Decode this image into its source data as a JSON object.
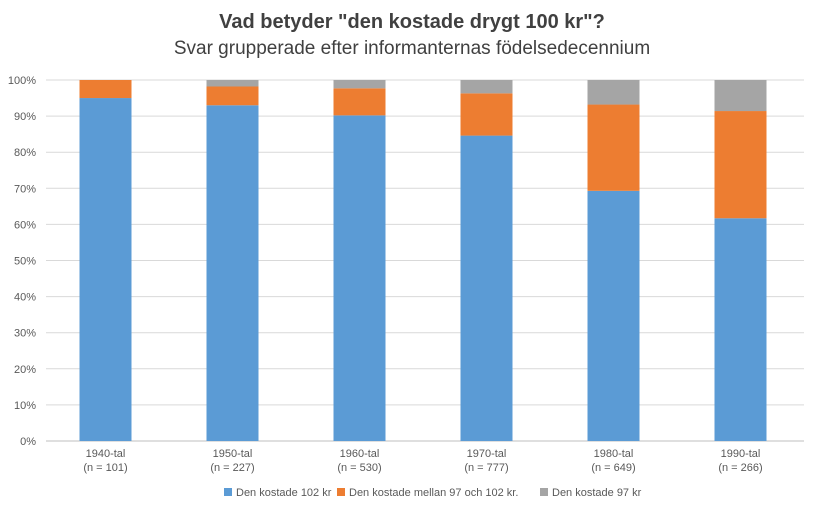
{
  "chart_data": {
    "type": "bar",
    "stacked": true,
    "title": "Vad betyder \"den kostade drygt 100 kr\"?",
    "subtitle": "Svar grupperade efter informanternas födelsedecennium",
    "categories": [
      "1940-tal",
      "1950-tal",
      "1960-tal",
      "1970-tal",
      "1980-tal",
      "1990-tal"
    ],
    "category_counts": [
      "(n = 101)",
      "(n = 227)",
      "(n = 530)",
      "(n = 777)",
      "(n = 649)",
      "(n = 266)"
    ],
    "series": [
      {
        "name": "Den kostade 102 kr",
        "color": "#5b9bd5",
        "values": [
          95.0,
          93.0,
          90.2,
          84.6,
          69.3,
          61.7
        ]
      },
      {
        "name": "Den kostade mellan 97 och 102 kr.",
        "color": "#ed7d31",
        "values": [
          5.0,
          5.2,
          7.5,
          11.7,
          23.9,
          29.7
        ]
      },
      {
        "name": "Den kostade 97 kr",
        "color": "#a5a5a5",
        "values": [
          0.0,
          1.8,
          2.3,
          3.7,
          6.8,
          8.6
        ]
      }
    ],
    "ylim": [
      0,
      100
    ],
    "yticks": [
      "0%",
      "10%",
      "20%",
      "30%",
      "40%",
      "50%",
      "60%",
      "70%",
      "80%",
      "90%",
      "100%"
    ],
    "grid": true,
    "legend": "bottom"
  }
}
